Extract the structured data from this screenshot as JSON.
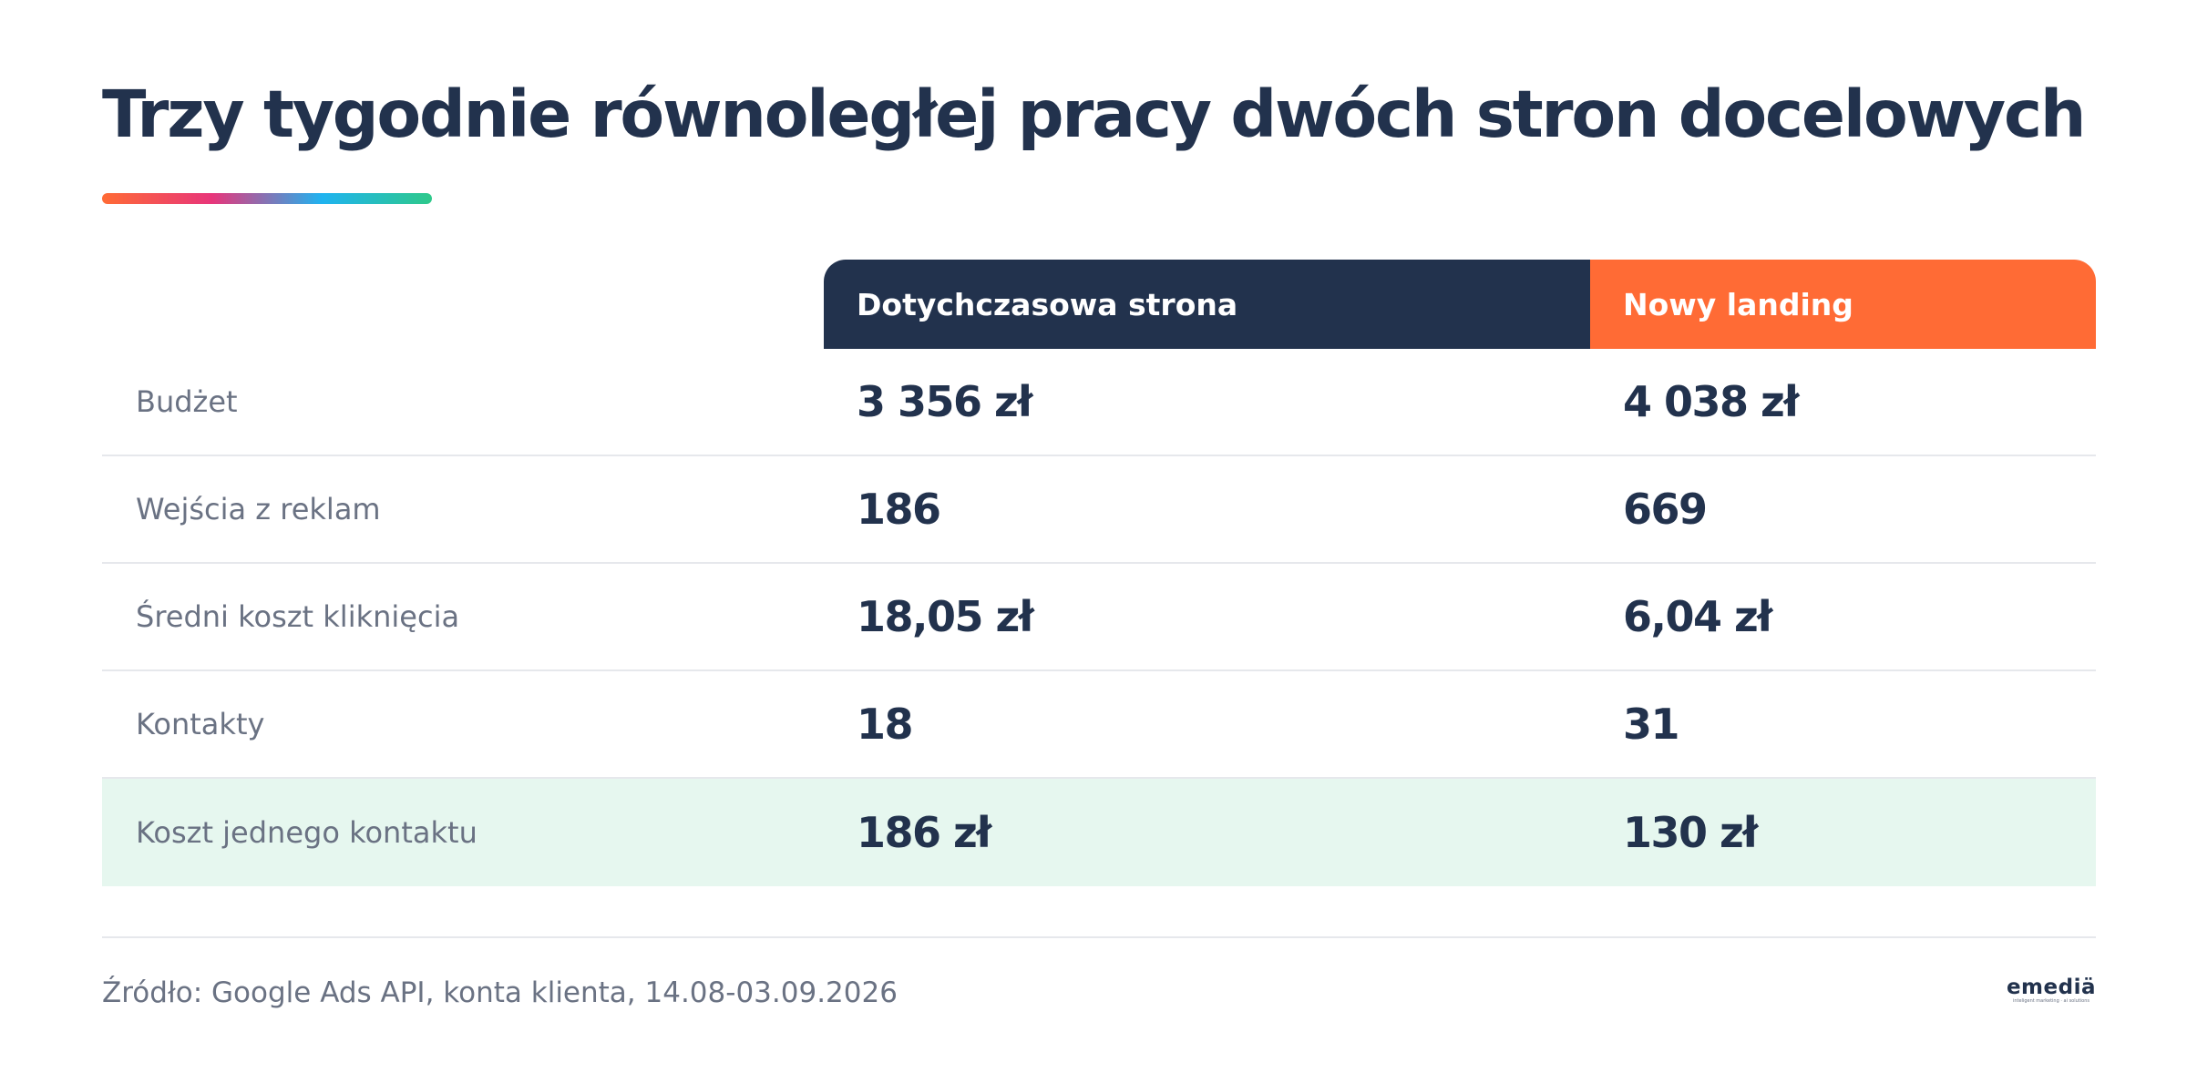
{
  "title": "Trzy tygodnie równoległej pracy dwóch stron docelowych",
  "accent_gradient": [
    "#ff6b35",
    "#e8357a",
    "#1fb3f0",
    "#2ec98a"
  ],
  "table": {
    "headers": {
      "old": "Dotychczasowa strona",
      "new": "Nowy landing"
    },
    "header_colors": {
      "old": "#22324d",
      "new": "#ff6b35"
    },
    "highlight_color": "#e6f7ef",
    "rows": [
      {
        "label": "Budżet",
        "old": "3 356 zł",
        "new": "4 038 zł"
      },
      {
        "label": "Wejścia z reklam",
        "old": "186",
        "new": "669"
      },
      {
        "label": "Średni koszt kliknięcia",
        "old": "18,05 zł",
        "new": "6,04 zł"
      },
      {
        "label": "Kontakty",
        "old": "18",
        "new": "31"
      },
      {
        "label": "Koszt jednego kontaktu",
        "old": "186 zł",
        "new": "130 zł"
      }
    ]
  },
  "footer": {
    "source": "Źródło: Google Ads API, konta klienta, 14.08-03.09.2026"
  },
  "logo": {
    "name": "emediä",
    "tagline": "inteligent marketing · ai solutions"
  }
}
